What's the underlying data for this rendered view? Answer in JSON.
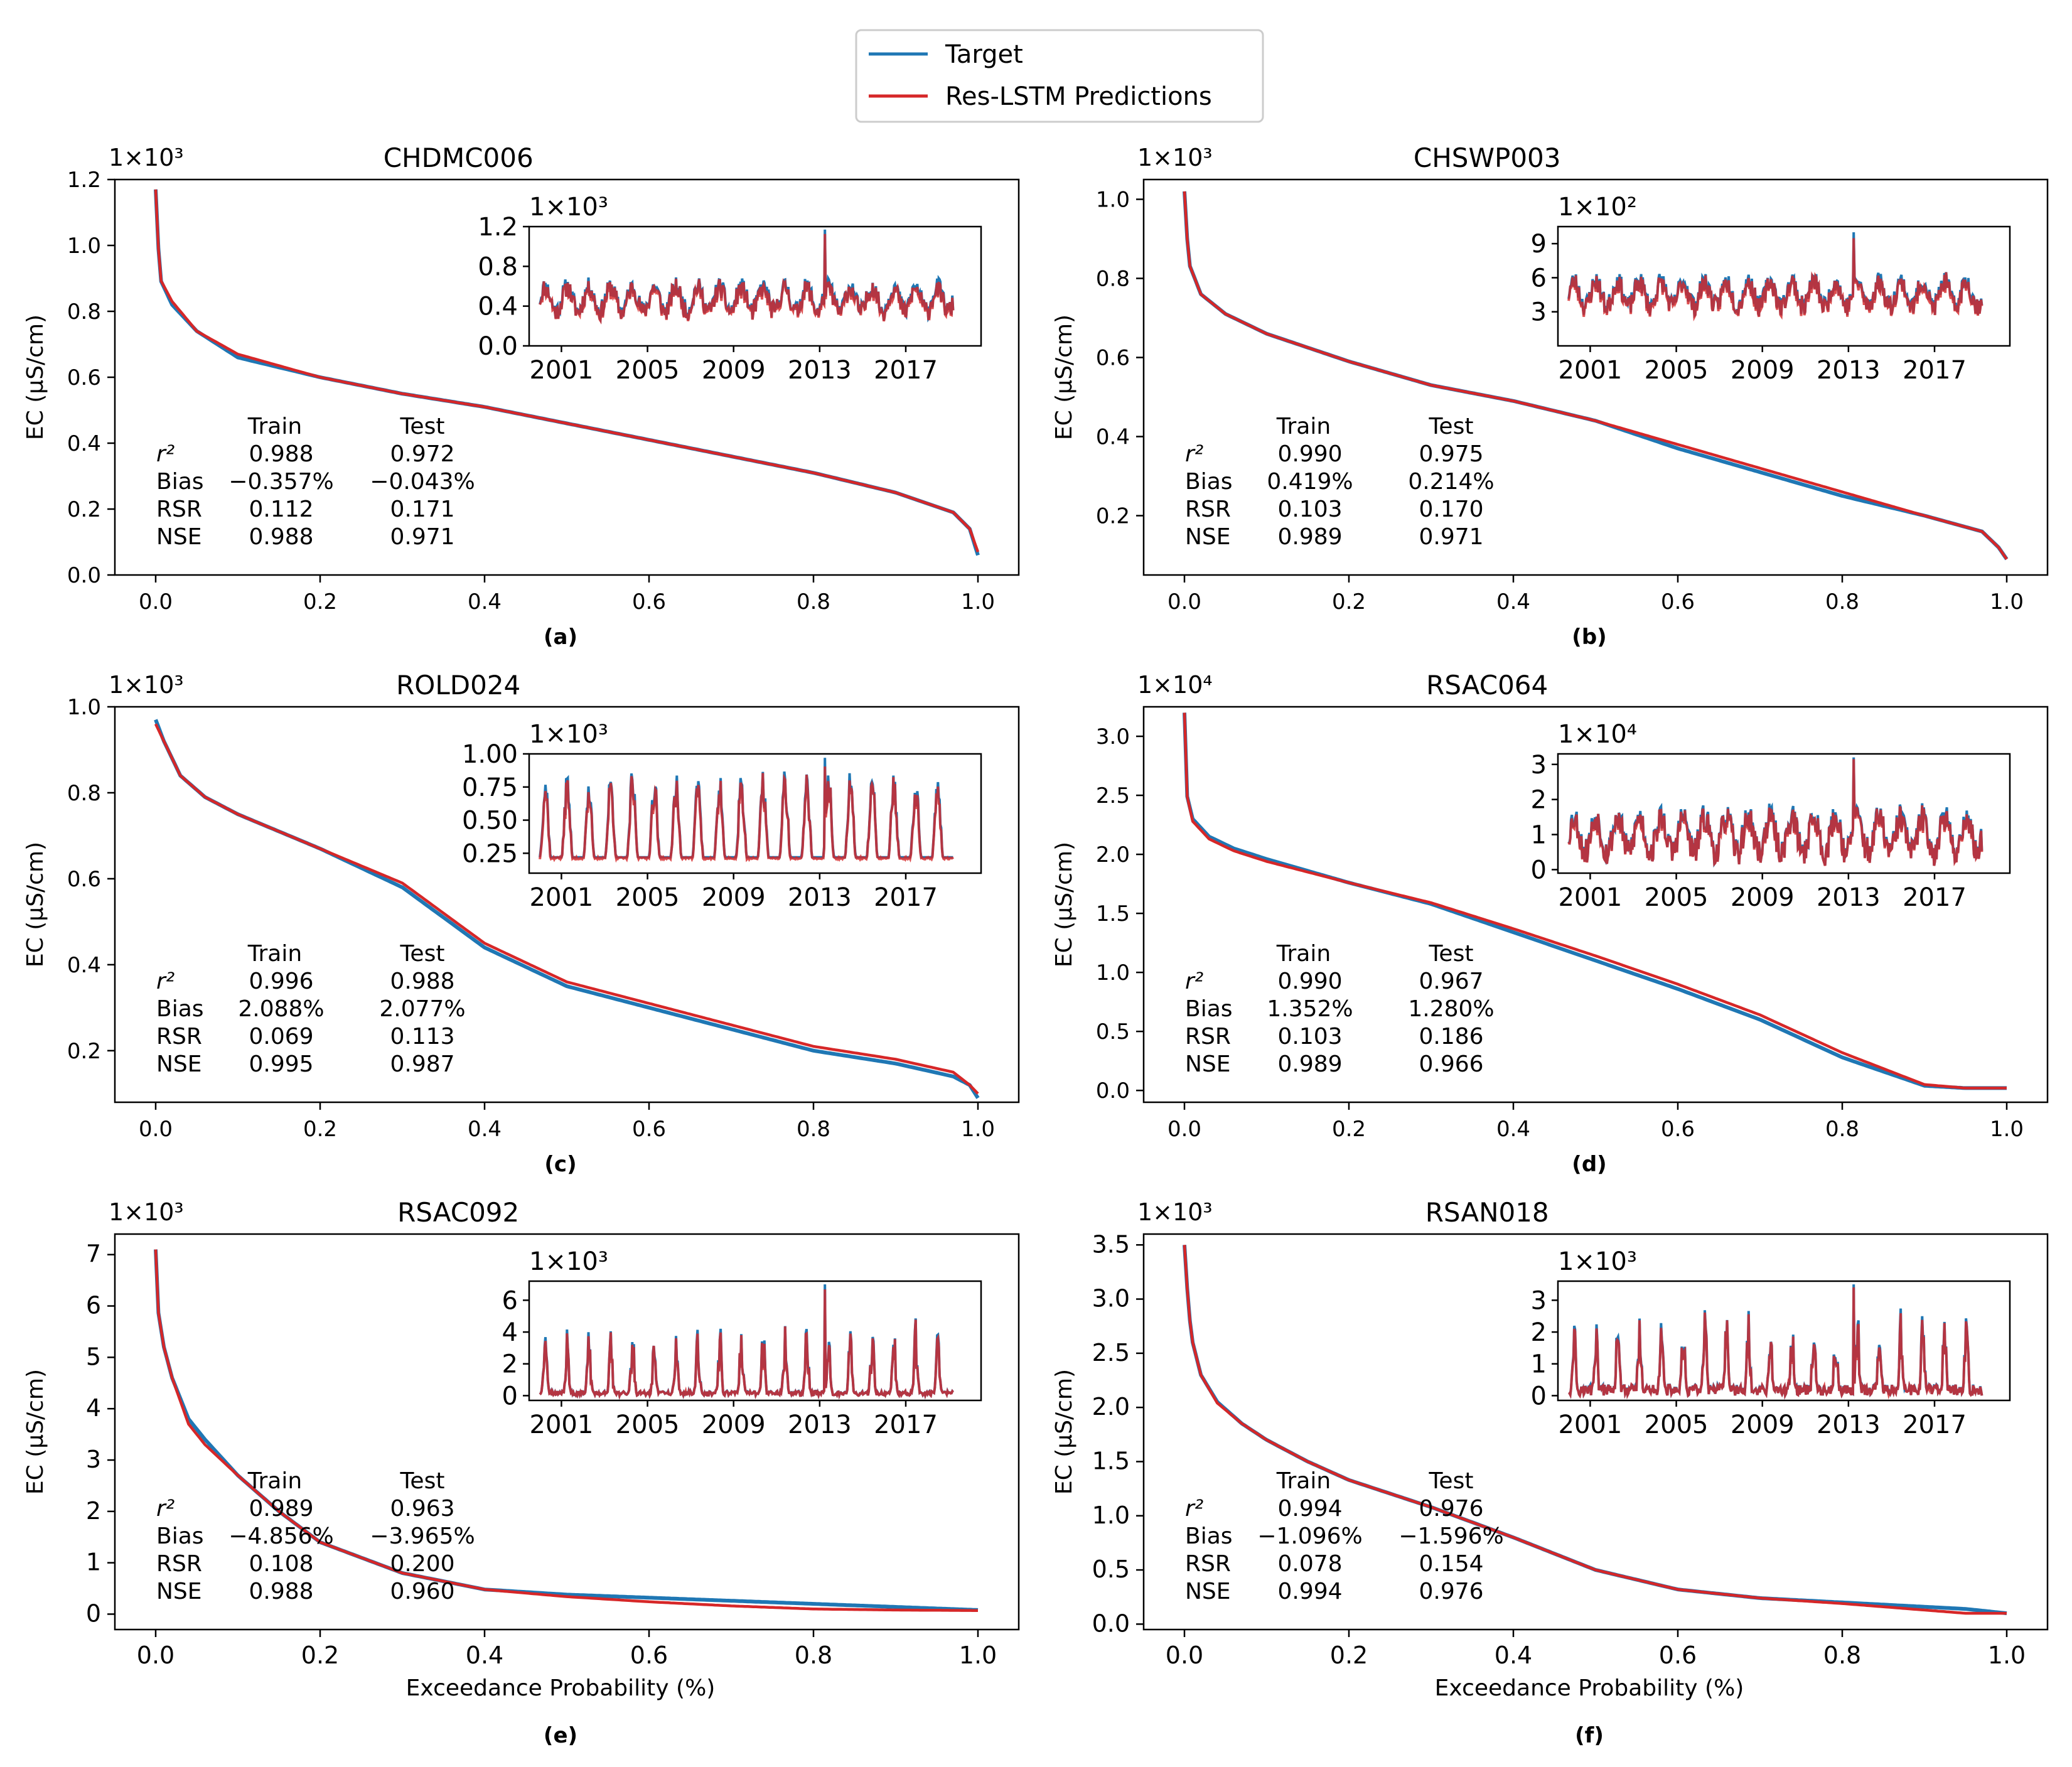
{
  "colors": {
    "target": "#1f77b4",
    "prediction": "#d62728",
    "axis": "#000000"
  },
  "legend": {
    "entries": [
      "Target",
      "Res-LSTM Predictions"
    ],
    "placement": "top-center"
  },
  "labels": {
    "xlabel": "Exceedance Probability (%)",
    "ylabel": "EC (μS/cm)",
    "stats_header": [
      "Train",
      "Test"
    ],
    "stats_rows": [
      "r²",
      "Bias",
      "RSR",
      "NSE"
    ]
  },
  "chart_data": [
    {
      "type": "line",
      "title": "CHDMC006",
      "panel_label": "(a)",
      "scale": "1×10³",
      "xlim": [
        0,
        1
      ],
      "ylim": [
        0,
        1.2
      ],
      "xticks": [
        "0.0",
        "0.2",
        "0.4",
        "0.6",
        "0.8",
        "1.0"
      ],
      "yticks": [
        "0.0",
        "0.2",
        "0.4",
        "0.6",
        "0.8",
        "1.0",
        "1.2"
      ],
      "series": [
        {
          "name": "Target",
          "x": [
            0,
            0.005,
            0.02,
            0.05,
            0.1,
            0.2,
            0.3,
            0.4,
            0.5,
            0.6,
            0.7,
            0.8,
            0.9,
            0.97,
            0.99,
            1.0
          ],
          "y": [
            1.17,
            0.9,
            0.82,
            0.74,
            0.66,
            0.6,
            0.55,
            0.51,
            0.46,
            0.41,
            0.36,
            0.31,
            0.25,
            0.19,
            0.14,
            0.06
          ]
        },
        {
          "name": "Res-LSTM Predictions",
          "x": [
            0,
            0.005,
            0.02,
            0.05,
            0.1,
            0.2,
            0.3,
            0.4,
            0.5,
            0.6,
            0.7,
            0.8,
            0.9,
            0.97,
            0.99,
            1.0
          ],
          "y": [
            1.17,
            0.9,
            0.83,
            0.74,
            0.67,
            0.6,
            0.55,
            0.51,
            0.46,
            0.41,
            0.36,
            0.31,
            0.25,
            0.19,
            0.14,
            0.07
          ]
        }
      ],
      "inset": {
        "scale": "1×10³",
        "yticks": [
          "0.0",
          "0.4",
          "0.8",
          "1.2"
        ],
        "ylim": [
          0,
          1.2
        ],
        "xticks": [
          "2001",
          "2005",
          "2009",
          "2013",
          "2017"
        ],
        "base": 0.47,
        "amp": 0.22,
        "mode": "osc",
        "max": 1.17,
        "seed": 11
      },
      "stats": {
        "train": [
          "0.988",
          "−0.357%",
          "0.112",
          "0.988"
        ],
        "test": [
          "0.972",
          "−0.043%",
          "0.171",
          "0.971"
        ]
      }
    },
    {
      "type": "line",
      "title": "CHSWP003",
      "panel_label": "(b)",
      "scale": "1×10³",
      "xlim": [
        0,
        1
      ],
      "ylim": [
        0.05,
        1.05
      ],
      "xticks": [
        "0.0",
        "0.2",
        "0.4",
        "0.6",
        "0.8",
        "1.0"
      ],
      "yticks": [
        "0.2",
        "0.4",
        "0.6",
        "0.8",
        "1.0"
      ],
      "series": [
        {
          "name": "Target",
          "x": [
            0,
            0.005,
            0.02,
            0.05,
            0.1,
            0.2,
            0.3,
            0.4,
            0.5,
            0.6,
            0.7,
            0.8,
            0.9,
            0.97,
            0.99,
            1.0
          ],
          "y": [
            1.02,
            0.84,
            0.76,
            0.71,
            0.66,
            0.59,
            0.53,
            0.49,
            0.44,
            0.37,
            0.31,
            0.25,
            0.2,
            0.16,
            0.12,
            0.09
          ]
        },
        {
          "name": "Res-LSTM Predictions",
          "x": [
            0,
            0.005,
            0.02,
            0.05,
            0.1,
            0.2,
            0.3,
            0.4,
            0.5,
            0.6,
            0.7,
            0.8,
            0.9,
            0.97,
            0.99,
            1.0
          ],
          "y": [
            1.02,
            0.84,
            0.76,
            0.71,
            0.66,
            0.59,
            0.53,
            0.49,
            0.44,
            0.38,
            0.32,
            0.26,
            0.2,
            0.16,
            0.12,
            0.09
          ]
        }
      ],
      "inset": {
        "scale": "1×10²",
        "yticks": [
          "3",
          "6",
          "9"
        ],
        "ylim": [
          0,
          10.5
        ],
        "xticks": [
          "2001",
          "2005",
          "2009",
          "2013",
          "2017"
        ],
        "base": 4.6,
        "amp": 2.0,
        "mode": "osc",
        "max": 10.0,
        "seed": 23
      },
      "stats": {
        "train": [
          "0.990",
          "0.419%",
          "0.103",
          "0.989"
        ],
        "test": [
          "0.975",
          "0.214%",
          "0.170",
          "0.971"
        ]
      }
    },
    {
      "type": "line",
      "title": "ROLD024",
      "panel_label": "(c)",
      "scale": "1×10³",
      "xlim": [
        0,
        1
      ],
      "ylim": [
        0.08,
        1.0
      ],
      "xticks": [
        "0.0",
        "0.2",
        "0.4",
        "0.6",
        "0.8",
        "1.0"
      ],
      "yticks": [
        "0.2",
        "0.4",
        "0.6",
        "0.8",
        "1.0"
      ],
      "series": [
        {
          "name": "Target",
          "x": [
            0,
            0.01,
            0.03,
            0.06,
            0.1,
            0.15,
            0.2,
            0.3,
            0.4,
            0.5,
            0.6,
            0.7,
            0.8,
            0.9,
            0.97,
            0.99,
            1.0
          ],
          "y": [
            0.97,
            0.92,
            0.84,
            0.79,
            0.75,
            0.71,
            0.67,
            0.58,
            0.44,
            0.35,
            0.3,
            0.25,
            0.2,
            0.17,
            0.14,
            0.12,
            0.09
          ]
        },
        {
          "name": "Res-LSTM Predictions",
          "x": [
            0,
            0.01,
            0.03,
            0.06,
            0.1,
            0.15,
            0.2,
            0.3,
            0.4,
            0.5,
            0.6,
            0.7,
            0.8,
            0.9,
            0.97,
            0.99,
            1.0
          ],
          "y": [
            0.96,
            0.92,
            0.84,
            0.79,
            0.75,
            0.71,
            0.67,
            0.59,
            0.45,
            0.36,
            0.31,
            0.26,
            0.21,
            0.18,
            0.15,
            0.12,
            0.1
          ]
        }
      ],
      "inset": {
        "scale": "1×10³",
        "yticks": [
          "0.25",
          "0.50",
          "0.75",
          "1.00"
        ],
        "ylim": [
          0.1,
          1.0
        ],
        "xticks": [
          "2001",
          "2005",
          "2009",
          "2013",
          "2017"
        ],
        "base": 0.22,
        "amp": 0.65,
        "mode": "peaks",
        "max": 0.97,
        "seed": 37
      },
      "stats": {
        "train": [
          "0.996",
          "2.088%",
          "0.069",
          "0.995"
        ],
        "test": [
          "0.988",
          "2.077%",
          "0.113",
          "0.987"
        ]
      }
    },
    {
      "type": "line",
      "title": "RSAC064",
      "panel_label": "(d)",
      "scale": "1×10⁴",
      "xlim": [
        0,
        1
      ],
      "ylim": [
        -0.1,
        3.25
      ],
      "xticks": [
        "0.0",
        "0.2",
        "0.4",
        "0.6",
        "0.8",
        "1.0"
      ],
      "yticks": [
        "0.0",
        "0.5",
        "1.0",
        "1.5",
        "2.0",
        "2.5",
        "3.0"
      ],
      "series": [
        {
          "name": "Target",
          "x": [
            0,
            0.003,
            0.01,
            0.03,
            0.06,
            0.1,
            0.2,
            0.3,
            0.4,
            0.5,
            0.6,
            0.7,
            0.8,
            0.9,
            0.95,
            1.0
          ],
          "y": [
            3.2,
            2.5,
            2.3,
            2.15,
            2.05,
            1.96,
            1.76,
            1.58,
            1.34,
            1.1,
            0.86,
            0.6,
            0.28,
            0.04,
            0.02,
            0.02
          ]
        },
        {
          "name": "Res-LSTM Predictions",
          "x": [
            0,
            0.003,
            0.01,
            0.03,
            0.06,
            0.1,
            0.2,
            0.3,
            0.4,
            0.5,
            0.6,
            0.7,
            0.8,
            0.9,
            0.95,
            1.0
          ],
          "y": [
            3.2,
            2.5,
            2.28,
            2.13,
            2.03,
            1.94,
            1.76,
            1.59,
            1.37,
            1.14,
            0.9,
            0.64,
            0.32,
            0.05,
            0.02,
            0.02
          ]
        }
      ],
      "inset": {
        "scale": "1×10⁴",
        "yticks": [
          "0",
          "1",
          "2",
          "3"
        ],
        "ylim": [
          -0.1,
          3.3
        ],
        "xticks": [
          "2001",
          "2005",
          "2009",
          "2013",
          "2017"
        ],
        "base": 1.0,
        "amp": 0.9,
        "mode": "osc",
        "max": 3.2,
        "seed": 53
      },
      "stats": {
        "train": [
          "0.990",
          "1.352%",
          "0.103",
          "0.989"
        ],
        "test": [
          "0.967",
          "1.280%",
          "0.186",
          "0.966"
        ]
      }
    },
    {
      "type": "line",
      "title": "RSAC092",
      "panel_label": "(e)",
      "scale": "1×10³",
      "xlim": [
        0,
        1
      ],
      "ylim": [
        -0.3,
        7.4
      ],
      "xticks": [
        "0.0",
        "0.2",
        "0.4",
        "0.6",
        "0.8",
        "1.0"
      ],
      "yticks": [
        "0",
        "1",
        "2",
        "3",
        "4",
        "5",
        "6",
        "7"
      ],
      "series": [
        {
          "name": "Target",
          "x": [
            0,
            0.003,
            0.01,
            0.02,
            0.04,
            0.06,
            0.1,
            0.15,
            0.2,
            0.3,
            0.4,
            0.5,
            0.6,
            0.7,
            0.8,
            0.9,
            1.0
          ],
          "y": [
            7.1,
            5.9,
            5.2,
            4.6,
            3.8,
            3.4,
            2.7,
            2.0,
            1.4,
            0.8,
            0.48,
            0.38,
            0.32,
            0.26,
            0.2,
            0.14,
            0.08
          ]
        },
        {
          "name": "Res-LSTM Predictions",
          "x": [
            0,
            0.003,
            0.01,
            0.02,
            0.04,
            0.06,
            0.1,
            0.15,
            0.2,
            0.3,
            0.4,
            0.5,
            0.6,
            0.7,
            0.8,
            0.9,
            1.0
          ],
          "y": [
            7.1,
            5.9,
            5.2,
            4.6,
            3.7,
            3.3,
            2.7,
            2.0,
            1.4,
            0.8,
            0.48,
            0.34,
            0.24,
            0.16,
            0.1,
            0.08,
            0.07
          ]
        }
      ],
      "inset": {
        "scale": "1×10³",
        "yticks": [
          "0",
          "2",
          "4",
          "6"
        ],
        "ylim": [
          -0.3,
          7.2
        ],
        "xticks": [
          "2001",
          "2005",
          "2009",
          "2013",
          "2017"
        ],
        "base": 0.3,
        "amp": 4.5,
        "mode": "spikes",
        "max": 7.0,
        "seed": 71
      },
      "stats": {
        "train": [
          "0.989",
          "−4.856%",
          "0.108",
          "0.988"
        ],
        "test": [
          "0.963",
          "−3.965%",
          "0.200",
          "0.960"
        ]
      }
    },
    {
      "type": "line",
      "title": "RSAN018",
      "panel_label": "(f)",
      "scale": "1×10³",
      "xlim": [
        0,
        1
      ],
      "ylim": [
        -0.05,
        3.6
      ],
      "xticks": [
        "0.0",
        "0.2",
        "0.4",
        "0.6",
        "0.8",
        "1.0"
      ],
      "yticks": [
        "0.0",
        "0.5",
        "1.0",
        "1.5",
        "2.0",
        "2.5",
        "3.0",
        "3.5"
      ],
      "series": [
        {
          "name": "Target",
          "x": [
            0,
            0.005,
            0.01,
            0.02,
            0.04,
            0.07,
            0.1,
            0.15,
            0.2,
            0.3,
            0.4,
            0.5,
            0.6,
            0.7,
            0.8,
            0.9,
            0.95,
            1.0
          ],
          "y": [
            3.5,
            2.9,
            2.6,
            2.3,
            2.05,
            1.85,
            1.7,
            1.5,
            1.33,
            1.08,
            0.8,
            0.5,
            0.32,
            0.24,
            0.2,
            0.16,
            0.14,
            0.1
          ]
        },
        {
          "name": "Res-LSTM Predictions",
          "x": [
            0,
            0.005,
            0.01,
            0.02,
            0.04,
            0.07,
            0.1,
            0.15,
            0.2,
            0.3,
            0.4,
            0.5,
            0.6,
            0.7,
            0.8,
            0.9,
            0.95,
            1.0
          ],
          "y": [
            3.5,
            2.9,
            2.6,
            2.3,
            2.04,
            1.85,
            1.7,
            1.5,
            1.33,
            1.08,
            0.8,
            0.5,
            0.32,
            0.24,
            0.19,
            0.13,
            0.1,
            0.1
          ]
        }
      ],
      "inset": {
        "scale": "1×10³",
        "yticks": [
          "0",
          "1",
          "2",
          "3"
        ],
        "ylim": [
          -0.15,
          3.6
        ],
        "xticks": [
          "2001",
          "2005",
          "2009",
          "2013",
          "2017"
        ],
        "base": 0.35,
        "amp": 2.4,
        "mode": "spikes",
        "max": 3.5,
        "seed": 97
      },
      "stats": {
        "train": [
          "0.994",
          "−1.096%",
          "0.078",
          "0.994"
        ],
        "test": [
          "0.976",
          "−1.596%",
          "0.154",
          "0.976"
        ]
      }
    }
  ]
}
